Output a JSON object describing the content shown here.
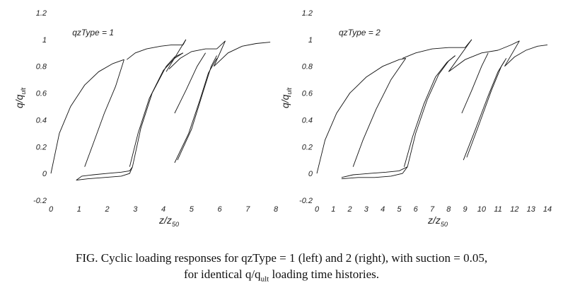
{
  "figure": {
    "caption_line1": "FIG. Cyclic loading responses for qzType = 1 (left) and 2 (right), with suction = 0.05,",
    "caption_line2_prefix": "for identical q/q",
    "caption_line2_sub": "ult",
    "caption_line2_suffix": " loading time histories."
  },
  "chart_data": [
    {
      "type": "line",
      "panel_label": "qzType = 1",
      "xlabel_main": "z/z",
      "xlabel_sub": "50",
      "ylabel_main": "q/q",
      "ylabel_sub": "ult",
      "xlim": [
        0,
        8
      ],
      "ylim": [
        -0.2,
        1.2
      ],
      "xticks": [
        "0",
        "1",
        "2",
        "3",
        "4",
        "5",
        "6",
        "7",
        "8"
      ],
      "yticks": [
        "-0.2",
        "0",
        "0.2",
        "0.4",
        "0.6",
        "0.8",
        "1",
        "1.2"
      ],
      "xtick_values": [
        0,
        1,
        2,
        3,
        4,
        5,
        6,
        7,
        8
      ],
      "ytick_values": [
        -0.2,
        0,
        0.2,
        0.4,
        0.6,
        0.8,
        1,
        1.2
      ],
      "series": [
        {
          "x": [
            0.0,
            0.3,
            0.7,
            1.2,
            1.7,
            2.2,
            2.6
          ],
          "y": [
            0.0,
            0.3,
            0.5,
            0.66,
            0.76,
            0.82,
            0.85
          ]
        },
        {
          "x": [
            2.6,
            2.3,
            1.9,
            1.5,
            1.2
          ],
          "y": [
            0.85,
            0.65,
            0.45,
            0.22,
            0.05
          ]
        },
        {
          "x": [
            0.9,
            1.1,
            1.5,
            2.0,
            2.5,
            2.8,
            2.9
          ],
          "y": [
            -0.05,
            -0.02,
            -0.01,
            0.0,
            0.01,
            0.02,
            0.05
          ]
        },
        {
          "x": [
            0.9,
            1.3,
            1.9,
            2.5,
            2.8,
            2.9
          ],
          "y": [
            -0.05,
            -0.04,
            -0.03,
            -0.02,
            0.0,
            0.05
          ]
        },
        {
          "x": [
            2.9,
            3.2,
            3.6,
            4.1,
            4.4,
            4.7
          ],
          "y": [
            0.05,
            0.34,
            0.6,
            0.8,
            0.87,
            0.9
          ]
        },
        {
          "x": [
            2.8,
            3.1,
            3.5,
            4.0,
            4.4,
            4.7
          ],
          "y": [
            0.05,
            0.3,
            0.56,
            0.77,
            0.86,
            0.9
          ]
        },
        {
          "x": [
            2.7,
            3.0,
            3.4,
            3.9,
            4.3,
            4.7
          ],
          "y": [
            0.85,
            0.9,
            0.93,
            0.95,
            0.96,
            0.96
          ]
        },
        {
          "x": [
            4.7,
            4.8
          ],
          "y": [
            0.96,
            1.0
          ]
        },
        {
          "x": [
            4.8,
            4.1
          ],
          "y": [
            1.0,
            0.76
          ]
        },
        {
          "x": [
            4.2,
            4.6,
            5.0,
            5.5,
            5.9
          ],
          "y": [
            0.78,
            0.86,
            0.91,
            0.93,
            0.93
          ]
        },
        {
          "x": [
            4.4,
            4.8,
            5.2,
            5.5
          ],
          "y": [
            0.45,
            0.62,
            0.8,
            0.9
          ]
        },
        {
          "x": [
            4.4,
            4.9,
            5.3,
            5.6,
            5.9
          ],
          "y": [
            0.08,
            0.3,
            0.55,
            0.75,
            0.86
          ]
        },
        {
          "x": [
            4.5,
            5.0,
            5.4,
            5.7,
            5.9
          ],
          "y": [
            0.1,
            0.33,
            0.6,
            0.8,
            0.88
          ]
        },
        {
          "x": [
            5.9,
            6.2
          ],
          "y": [
            0.93,
            0.99
          ]
        },
        {
          "x": [
            6.2,
            5.8
          ],
          "y": [
            0.99,
            0.8
          ]
        },
        {
          "x": [
            5.8,
            6.3,
            6.8,
            7.3,
            7.8
          ],
          "y": [
            0.8,
            0.9,
            0.95,
            0.97,
            0.98
          ]
        }
      ]
    },
    {
      "type": "line",
      "panel_label": "qzType = 2",
      "xlabel_main": "z/z",
      "xlabel_sub": "50",
      "ylabel_main": "q/q",
      "ylabel_sub": "ult",
      "xlim": [
        0,
        14
      ],
      "ylim": [
        -0.2,
        1.2
      ],
      "xticks": [
        "0",
        "1",
        "2",
        "3",
        "4",
        "5",
        "6",
        "7",
        "8",
        "9",
        "10",
        "11",
        "12",
        "13",
        "14"
      ],
      "yticks": [
        "-0.2",
        "0",
        "0.2",
        "0.4",
        "0.6",
        "0.8",
        "1",
        "1.2"
      ],
      "xtick_values": [
        0,
        1,
        2,
        3,
        4,
        5,
        6,
        7,
        8,
        9,
        10,
        11,
        12,
        13,
        14
      ],
      "ytick_values": [
        -0.2,
        0,
        0.2,
        0.4,
        0.6,
        0.8,
        1,
        1.2
      ],
      "series": [
        {
          "x": [
            0.0,
            0.5,
            1.2,
            2.0,
            3.0,
            4.0,
            5.0,
            5.4
          ],
          "y": [
            0.0,
            0.25,
            0.45,
            0.6,
            0.72,
            0.8,
            0.85,
            0.86
          ]
        },
        {
          "x": [
            5.4,
            4.5,
            3.6,
            2.8,
            2.2
          ],
          "y": [
            0.86,
            0.7,
            0.48,
            0.25,
            0.05
          ]
        },
        {
          "x": [
            1.5,
            2.2,
            3.2,
            4.2,
            5.0,
            5.5
          ],
          "y": [
            -0.03,
            -0.01,
            0.0,
            0.01,
            0.02,
            0.05
          ]
        },
        {
          "x": [
            1.5,
            2.5,
            3.5,
            4.5,
            5.2,
            5.5
          ],
          "y": [
            -0.04,
            -0.03,
            -0.03,
            -0.02,
            0.0,
            0.05
          ]
        },
        {
          "x": [
            5.5,
            6.0,
            6.7,
            7.4,
            8.0,
            8.4
          ],
          "y": [
            0.05,
            0.3,
            0.55,
            0.74,
            0.84,
            0.88
          ]
        },
        {
          "x": [
            5.3,
            5.8,
            6.5,
            7.2,
            7.9,
            8.4
          ],
          "y": [
            0.05,
            0.27,
            0.52,
            0.72,
            0.83,
            0.88
          ]
        },
        {
          "x": [
            5.2,
            6.0,
            7.0,
            8.0,
            9.0
          ],
          "y": [
            0.86,
            0.9,
            0.93,
            0.94,
            0.94
          ]
        },
        {
          "x": [
            9.0,
            9.4
          ],
          "y": [
            0.94,
            1.0
          ]
        },
        {
          "x": [
            9.4,
            8.0
          ],
          "y": [
            1.0,
            0.76
          ]
        },
        {
          "x": [
            8.0,
            9.0,
            10.0,
            11.0
          ],
          "y": [
            0.76,
            0.85,
            0.9,
            0.92
          ]
        },
        {
          "x": [
            8.8,
            9.4,
            10.0,
            10.4
          ],
          "y": [
            0.45,
            0.62,
            0.8,
            0.9
          ]
        },
        {
          "x": [
            8.9,
            9.6,
            10.4,
            11.0,
            11.4
          ],
          "y": [
            0.1,
            0.32,
            0.58,
            0.76,
            0.84
          ]
        },
        {
          "x": [
            9.1,
            9.8,
            10.6,
            11.2,
            11.5
          ],
          "y": [
            0.12,
            0.35,
            0.62,
            0.8,
            0.86
          ]
        },
        {
          "x": [
            11.0,
            11.8,
            12.3
          ],
          "y": [
            0.92,
            0.96,
            0.99
          ]
        },
        {
          "x": [
            12.3,
            11.4
          ],
          "y": [
            0.99,
            0.8
          ]
        },
        {
          "x": [
            11.4,
            12.0,
            12.7,
            13.4,
            14.0
          ],
          "y": [
            0.8,
            0.87,
            0.92,
            0.95,
            0.96
          ]
        }
      ]
    }
  ]
}
